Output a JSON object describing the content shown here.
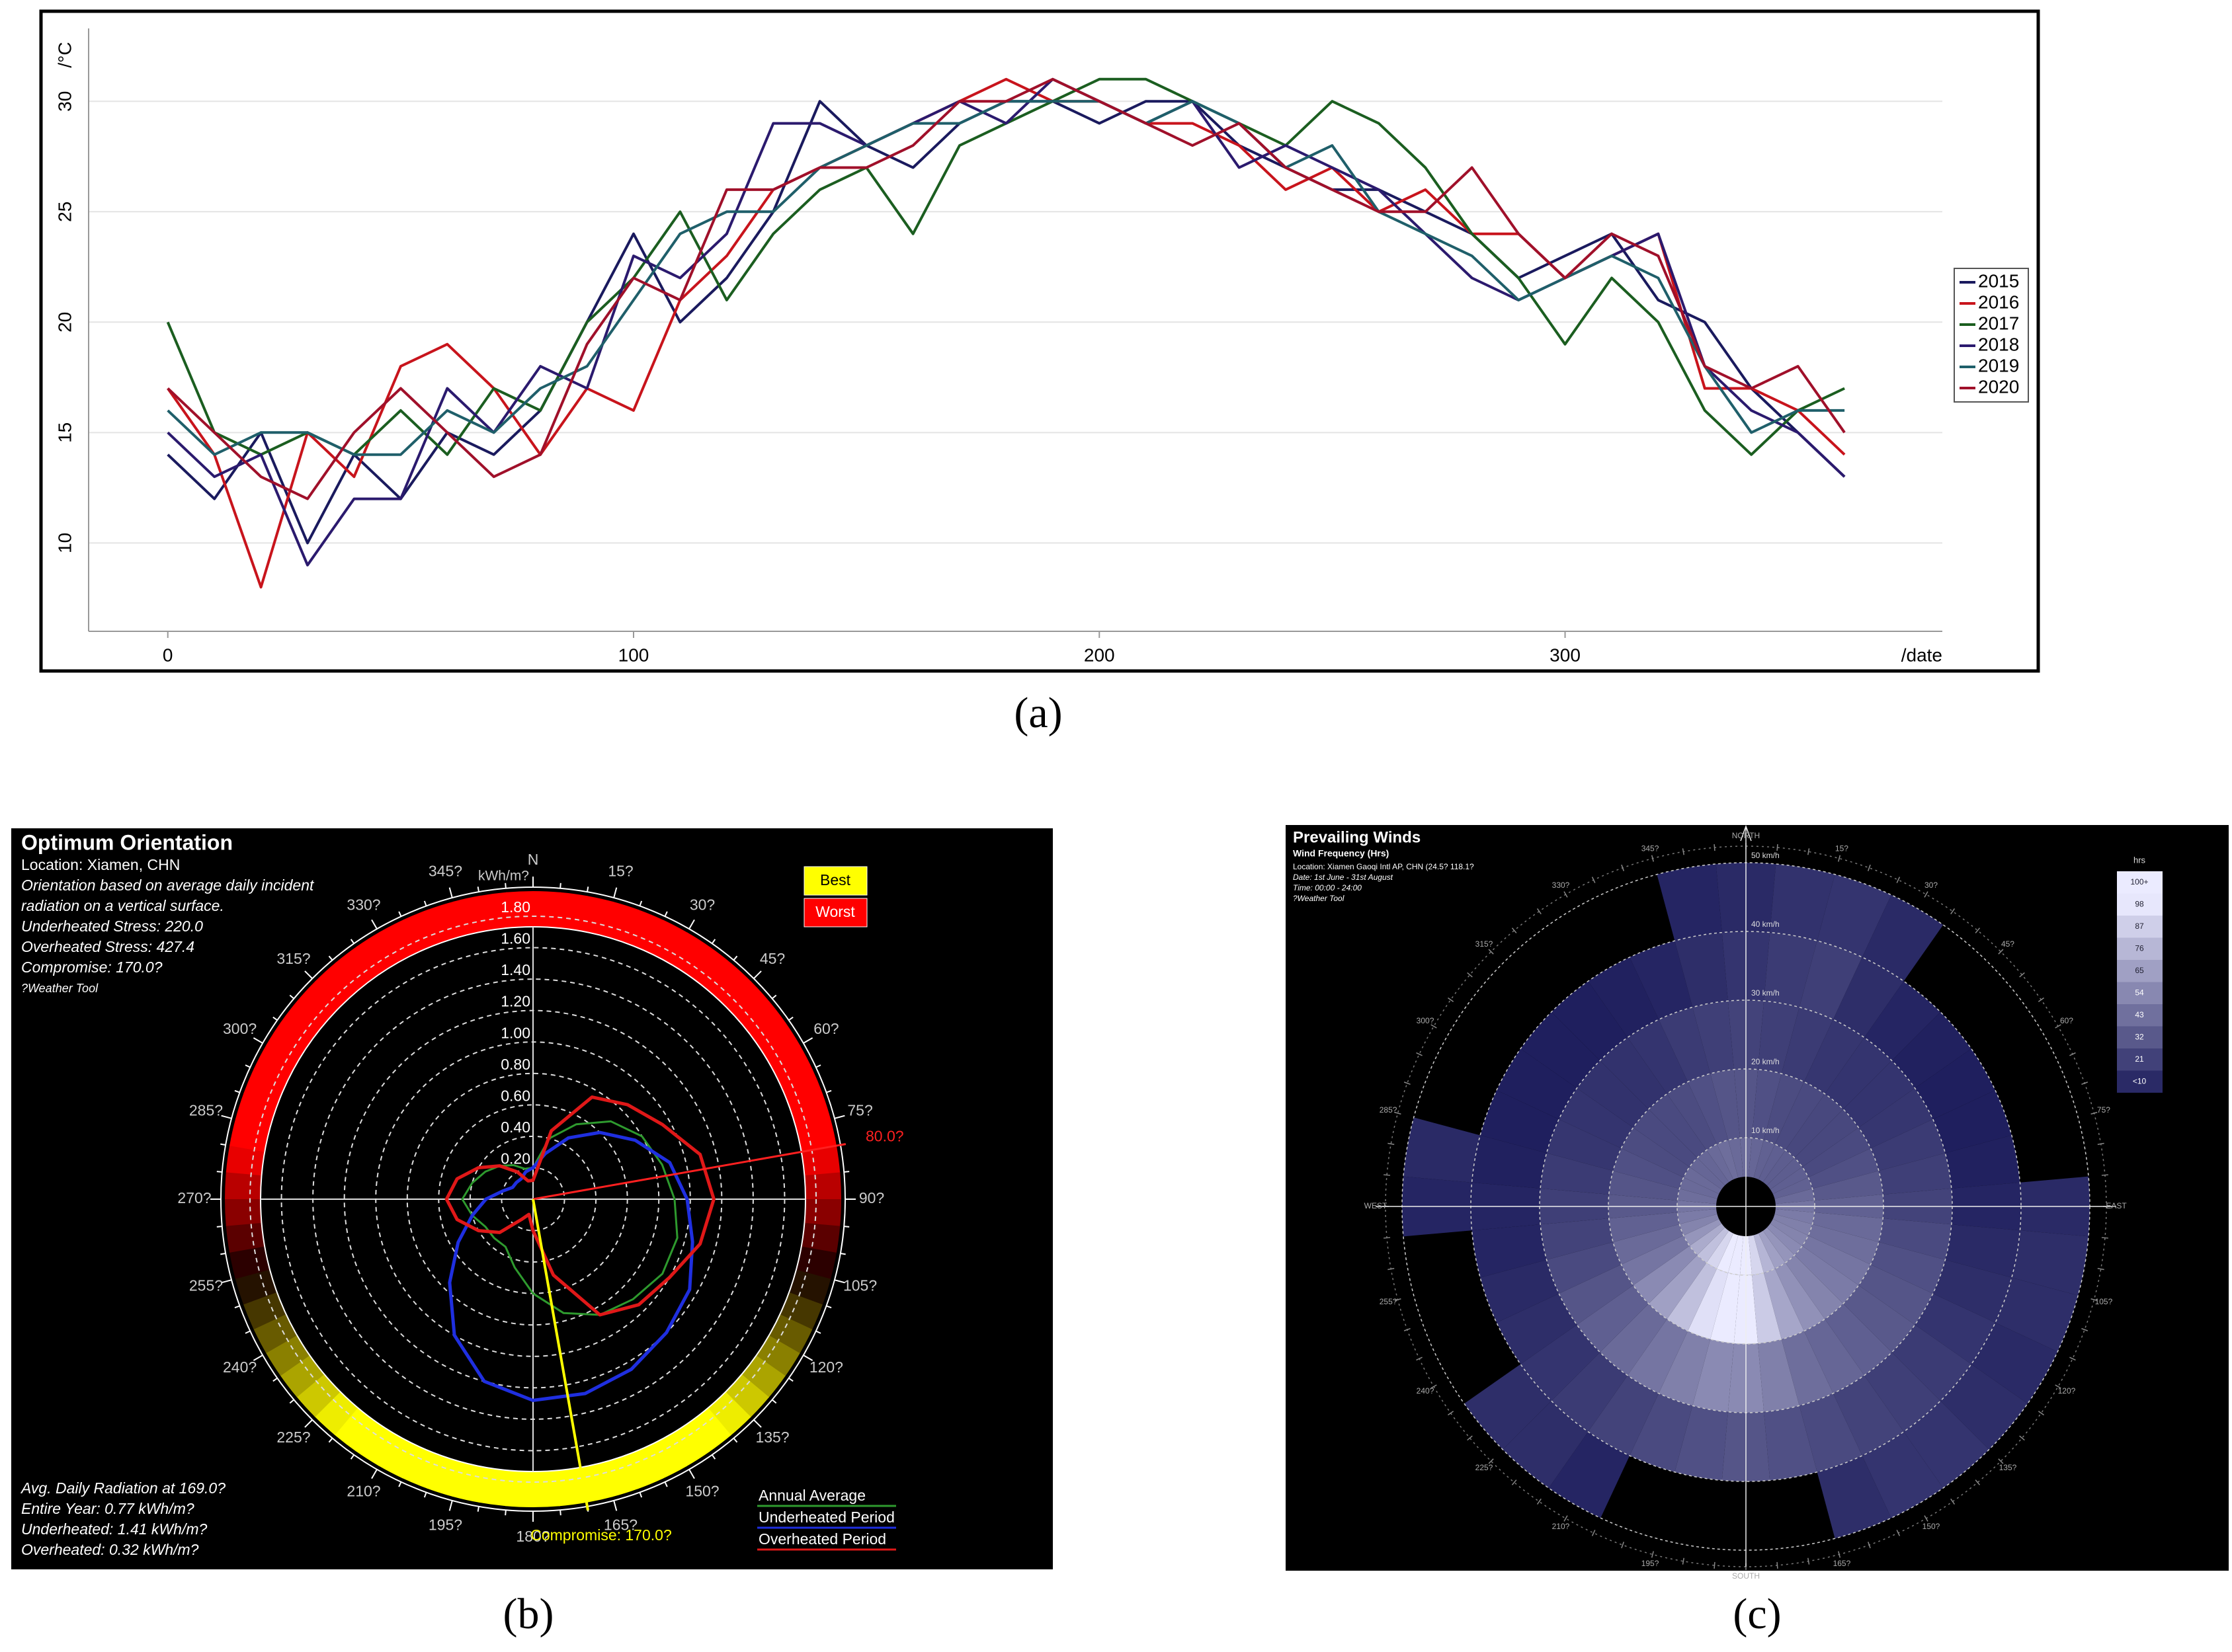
{
  "chart_data": [
    {
      "type": "line",
      "caption": "(a)",
      "y_label": "/°C",
      "x_label": "/date",
      "x": [
        0,
        10,
        20,
        30,
        40,
        50,
        60,
        70,
        80,
        90,
        100,
        110,
        120,
        130,
        140,
        150,
        160,
        170,
        180,
        190,
        200,
        210,
        220,
        230,
        240,
        250,
        260,
        270,
        280,
        290,
        300,
        310,
        320,
        330,
        340,
        350,
        360
      ],
      "xlim": [
        -17,
        381
      ],
      "xticks": [
        0,
        100,
        200,
        300
      ],
      "ylim": [
        6,
        33.3
      ],
      "yticks": [
        10,
        15,
        20,
        25,
        30
      ],
      "grid": true,
      "series": [
        {
          "name": "2015",
          "color": "#1a1a5e",
          "values": [
            14,
            12,
            15,
            10,
            14,
            12,
            15,
            14,
            16,
            20,
            24,
            20,
            22,
            25,
            30,
            28,
            27,
            29,
            30,
            30,
            29,
            30,
            30,
            28,
            27,
            26,
            26,
            25,
            24,
            22,
            23,
            24,
            21,
            20,
            17,
            15,
            13
          ]
        },
        {
          "name": "2016",
          "color": "#c8141c",
          "values": [
            17,
            14,
            8,
            15,
            13,
            18,
            19,
            17,
            14,
            17,
            16,
            21,
            23,
            26,
            27,
            28,
            29,
            30,
            31,
            30,
            30,
            29,
            29,
            28,
            26,
            27,
            25,
            26,
            24,
            24,
            22,
            23,
            24,
            17,
            17,
            16,
            14
          ]
        },
        {
          "name": "2017",
          "color": "#1b5e20",
          "values": [
            20,
            15,
            14,
            15,
            14,
            16,
            14,
            17,
            16,
            20,
            22,
            25,
            21,
            24,
            26,
            27,
            24,
            28,
            29,
            30,
            31,
            31,
            30,
            29,
            28,
            30,
            29,
            27,
            24,
            22,
            19,
            22,
            20,
            16,
            14,
            16,
            17
          ]
        },
        {
          "name": "2018",
          "color": "#2b1a6e",
          "values": [
            15,
            13,
            14,
            9,
            12,
            12,
            17,
            15,
            18,
            17,
            23,
            22,
            24,
            29,
            29,
            28,
            29,
            30,
            29,
            31,
            30,
            29,
            30,
            27,
            28,
            27,
            26,
            24,
            22,
            21,
            22,
            23,
            24,
            18,
            16,
            15,
            13
          ]
        },
        {
          "name": "2019",
          "color": "#1f5f6a",
          "values": [
            16,
            14,
            15,
            15,
            14,
            14,
            16,
            15,
            17,
            18,
            21,
            24,
            25,
            25,
            27,
            28,
            29,
            29,
            30,
            30,
            30,
            29,
            30,
            29,
            27,
            28,
            25,
            24,
            23,
            21,
            22,
            23,
            22,
            18,
            15,
            16,
            16
          ]
        },
        {
          "name": "2020",
          "color": "#a0102a",
          "values": [
            17,
            15,
            13,
            12,
            15,
            17,
            15,
            13,
            14,
            19,
            22,
            21,
            26,
            26,
            27,
            27,
            28,
            30,
            30,
            31,
            30,
            29,
            28,
            29,
            27,
            26,
            25,
            25,
            27,
            24,
            22,
            24,
            23,
            18,
            17,
            18,
            15
          ]
        }
      ]
    },
    {
      "type": "polar",
      "caption": "(b)",
      "title": "Optimum Orientation",
      "notes": [
        "Location: Xiamen, CHN",
        "Orientation based on average daily incident",
        "radiation on a vertical surface.",
        "Underheated Stress: 220.0",
        "Overheated Stress: 427.4",
        "Compromise: 170.0?",
        "?Weather Tool"
      ],
      "summary": [
        "Avg. Daily Radiation at 169.0?",
        "Entire Year: 0.77 kWh/m?",
        "Underheated: 1.41 kWh/m?",
        "Overheated: 0.32 kWh/m?"
      ],
      "r_unit": "kWh/m?",
      "rlim": [
        0,
        1.8
      ],
      "rticks": [
        {
          "value": 0.2,
          "label": "0.20"
        },
        {
          "value": 0.4,
          "label": "0.40"
        },
        {
          "value": 0.6,
          "label": "0.60"
        },
        {
          "value": 0.8,
          "label": "0.80"
        },
        {
          "value": 1.0,
          "label": "1.00"
        },
        {
          "value": 1.2,
          "label": "1.20"
        },
        {
          "value": 1.4,
          "label": "1.40"
        },
        {
          "value": 1.6,
          "label": "1.60"
        },
        {
          "value": 1.8,
          "label": "1.80"
        }
      ],
      "angle_ticks": [
        {
          "value": 0,
          "label": "N"
        },
        {
          "value": 15,
          "label": "15?"
        },
        {
          "value": 30,
          "label": "30?"
        },
        {
          "value": 45,
          "label": "45?"
        },
        {
          "value": 60,
          "label": "60?"
        },
        {
          "value": 75,
          "label": "75?"
        },
        {
          "value": 90,
          "label": "90?"
        },
        {
          "value": 105,
          "label": "105?"
        },
        {
          "value": 120,
          "label": "120?"
        },
        {
          "value": 135,
          "label": "135?"
        },
        {
          "value": 150,
          "label": "150?"
        },
        {
          "value": 165,
          "label": "165?"
        },
        {
          "value": 180,
          "label": "180?"
        },
        {
          "value": 195,
          "label": "195?"
        },
        {
          "value": 210,
          "label": "210?"
        },
        {
          "value": 225,
          "label": "225?"
        },
        {
          "value": 240,
          "label": "240?"
        },
        {
          "value": 255,
          "label": "255?"
        },
        {
          "value": 270,
          "label": "270?"
        },
        {
          "value": 285,
          "label": "285?"
        },
        {
          "value": 300,
          "label": "300?"
        },
        {
          "value": 315,
          "label": "315?"
        },
        {
          "value": 330,
          "label": "330?"
        },
        {
          "value": 345,
          "label": "345?"
        }
      ],
      "theta": [
        0,
        15,
        30,
        45,
        60,
        75,
        90,
        105,
        120,
        135,
        150,
        165,
        180,
        195,
        210,
        225,
        240,
        255,
        270,
        285,
        300,
        315,
        330,
        345
      ],
      "series": [
        {
          "name": "Annual Average",
          "color": "#2e9a2e",
          "values": [
            0.2,
            0.4,
            0.55,
            0.7,
            0.8,
            0.85,
            0.9,
            0.95,
            0.95,
            0.9,
            0.85,
            0.75,
            0.6,
            0.45,
            0.35,
            0.35,
            0.35,
            0.4,
            0.45,
            0.4,
            0.35,
            0.3,
            0.25,
            0.2
          ]
        },
        {
          "name": "Underheated Period",
          "color": "#1f2fe0",
          "values": [
            0.2,
            0.3,
            0.45,
            0.6,
            0.75,
            0.9,
            0.98,
            1.05,
            1.15,
            1.2,
            1.25,
            1.28,
            1.28,
            1.2,
            1.0,
            0.75,
            0.55,
            0.4,
            0.3,
            0.2,
            0.15,
            0.15,
            0.15,
            0.18
          ]
        },
        {
          "name": "Overheated Period",
          "color": "#e01818",
          "values": [
            0.12,
            0.45,
            0.75,
            0.85,
            0.95,
            1.1,
            1.15,
            1.1,
            1.0,
            0.95,
            0.85,
            0.5,
            0.2,
            0.1,
            0.15,
            0.3,
            0.4,
            0.5,
            0.55,
            0.5,
            0.4,
            0.3,
            0.2,
            0.12
          ]
        }
      ],
      "best": {
        "label": "Best",
        "color": "#ffff00"
      },
      "worst": {
        "label": "Worst",
        "color": "#ff0000"
      },
      "best_angle": {
        "value": 80,
        "label": "80.0?"
      },
      "compromise": {
        "value": 170,
        "label": "Compromise: 170.0?"
      }
    },
    {
      "type": "windrose",
      "caption": "(c)",
      "title": "Prevailing Winds",
      "subtitle": "Wind Frequency (Hrs)",
      "notes": [
        "Location: Xiamen Gaoqi Intl AP, CHN (24.5? 118.1?",
        "Date: 1st June - 31st August",
        "Time: 00:00 - 24:00",
        "?Weather Tool"
      ],
      "legend_title": "hrs",
      "levels": [
        {
          "value": 10,
          "label": "<10"
        },
        21,
        32,
        43,
        54,
        65,
        76,
        87,
        98,
        {
          "value": 100,
          "label": "100+"
        }
      ],
      "color_range": [
        "#141455",
        "#ebebff"
      ],
      "directions": [
        0,
        10,
        20,
        30,
        40,
        50,
        60,
        70,
        80,
        90,
        100,
        110,
        120,
        130,
        140,
        150,
        160,
        170,
        180,
        190,
        200,
        210,
        220,
        230,
        240,
        250,
        260,
        270,
        280,
        290,
        300,
        310,
        320,
        330,
        340,
        350
      ],
      "speed_bins": [
        0,
        10,
        20,
        30,
        40,
        50
      ],
      "rticks": [
        {
          "value": 10,
          "label": "10 km/h"
        },
        {
          "value": 20,
          "label": "20 km/h"
        },
        {
          "value": 30,
          "label": "30 km/h"
        },
        {
          "value": 40,
          "label": "40 km/h"
        },
        {
          "value": 50,
          "label": "50 km/h"
        }
      ],
      "angle_ticks": [
        {
          "value": 0,
          "label": "NORTH"
        },
        {
          "value": 15,
          "label": "15?"
        },
        {
          "value": 30,
          "label": "30?"
        },
        {
          "value": 45,
          "label": "45?"
        },
        {
          "value": 60,
          "label": "60?"
        },
        {
          "value": 75,
          "label": "75?"
        },
        {
          "value": 90,
          "label": "EAST"
        },
        {
          "value": 105,
          "label": "105?"
        },
        {
          "value": 120,
          "label": "120?"
        },
        {
          "value": 135,
          "label": "135?"
        },
        {
          "value": 150,
          "label": "150?"
        },
        {
          "value": 165,
          "label": "165?"
        },
        {
          "value": 180,
          "label": "SOUTH"
        },
        {
          "value": 195,
          "label": "195?"
        },
        {
          "value": 210,
          "label": "210?"
        },
        {
          "value": 225,
          "label": "225?"
        },
        {
          "value": 240,
          "label": "240?"
        },
        {
          "value": 255,
          "label": "255?"
        },
        {
          "value": 270,
          "label": "WEST"
        },
        {
          "value": 285,
          "label": "285?"
        },
        {
          "value": 300,
          "label": "300?"
        },
        {
          "value": 315,
          "label": "315?"
        },
        {
          "value": 330,
          "label": "330?"
        },
        {
          "value": 345,
          "label": "345?"
        }
      ],
      "hours": [
        [
          40,
          38,
          36,
          35,
          34,
          34,
          35,
          36,
          40,
          45,
          48,
          50,
          52,
          55,
          60,
          65,
          75,
          90,
          100,
          105,
          100,
          90,
          80,
          70,
          60,
          52,
          48,
          45,
          42,
          40,
          40,
          38,
          38,
          40,
          42,
          40
        ],
        [
          30,
          28,
          26,
          25,
          24,
          24,
          25,
          28,
          32,
          36,
          40,
          42,
          45,
          48,
          52,
          58,
          68,
          85,
          100,
          110,
          95,
          80,
          65,
          55,
          45,
          40,
          36,
          32,
          30,
          28,
          26,
          25,
          25,
          26,
          28,
          30
        ],
        [
          22,
          20,
          18,
          16,
          15,
          15,
          16,
          18,
          20,
          22,
          25,
          28,
          30,
          32,
          35,
          38,
          42,
          50,
          55,
          55,
          50,
          45,
          40,
          35,
          30,
          25,
          22,
          20,
          18,
          16,
          15,
          14,
          14,
          15,
          18,
          20
        ],
        [
          15,
          18,
          20,
          12,
          8,
          6,
          5,
          5,
          6,
          8,
          10,
          12,
          15,
          18,
          20,
          22,
          25,
          28,
          30,
          28,
          25,
          22,
          18,
          15,
          12,
          10,
          8,
          8,
          6,
          5,
          5,
          5,
          5,
          6,
          8,
          12
        ],
        [
          10,
          14,
          15,
          10,
          0,
          0,
          0,
          0,
          0,
          10,
          12,
          12,
          10,
          12,
          15,
          15,
          12,
          0,
          0,
          0,
          0,
          8,
          12,
          12,
          0,
          0,
          0,
          8,
          10,
          0,
          0,
          0,
          0,
          0,
          0,
          8
        ]
      ]
    }
  ]
}
